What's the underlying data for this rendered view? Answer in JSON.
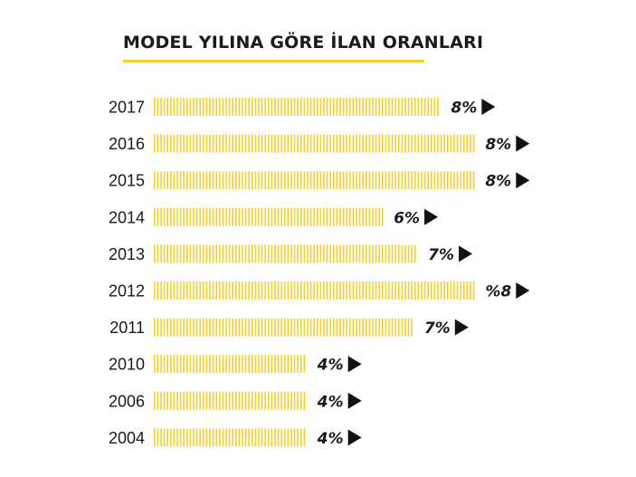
{
  "colors": {
    "bar": "#F5CF2E",
    "text": "#1a1a1a",
    "arrow": "#111111",
    "underline": "#F5CF2E"
  },
  "chart_data": {
    "type": "bar",
    "orientation": "horizontal",
    "title": "MODEL YILINA GÖRE İLAN ORANLARI",
    "categories": [
      "2017",
      "2016",
      "2015",
      "2014",
      "2013",
      "2012",
      "2011",
      "2010",
      "2006",
      "2004"
    ],
    "values": [
      7.5,
      8.4,
      8.4,
      6.0,
      6.9,
      8.4,
      6.8,
      4.0,
      4.0,
      4.0
    ],
    "value_labels": [
      "8%",
      "8%",
      "8%",
      "6%",
      "7%",
      "%8",
      "7%",
      "4%",
      "4%",
      "4%"
    ],
    "xlim": [
      0,
      9
    ],
    "grid": false,
    "bar_style": "vertical stripes",
    "label_marker": "play-triangle"
  }
}
